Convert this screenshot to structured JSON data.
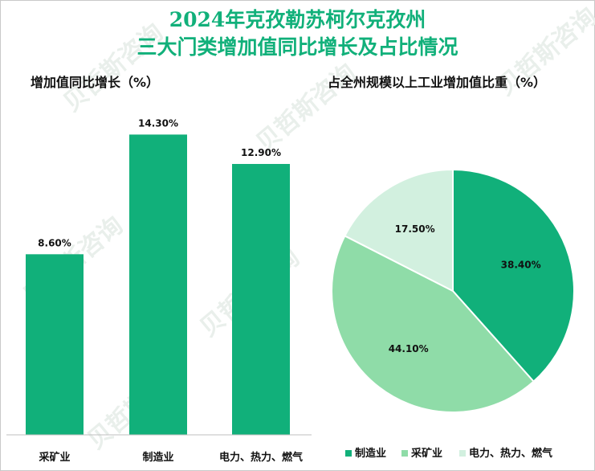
{
  "title_line1": "2024年克孜勒苏柯尔克孜州",
  "title_line2": "三大门类增加值同比增长及占比情况",
  "watermark": "贝哲斯咨询",
  "chart_data": [
    {
      "type": "bar",
      "title": "增加值同比增长（%）",
      "categories": [
        "采矿业",
        "制造业",
        "电力、热力、燃气"
      ],
      "values": [
        8.6,
        14.3,
        12.9
      ],
      "value_labels": [
        "8.60%",
        "14.30%",
        "12.90%"
      ],
      "ylim": [
        0,
        16
      ],
      "color": "#11b07a",
      "grid": false
    },
    {
      "type": "pie",
      "title": "占全州规模以上工业增加值比重（%）",
      "labels": [
        "制造业",
        "采矿业",
        "电力、热力、燃气"
      ],
      "values": [
        38.4,
        44.1,
        17.5
      ],
      "value_labels": [
        "38.40%",
        "44.10%",
        "17.50%"
      ],
      "colors": [
        "#11b07a",
        "#8fdca8",
        "#d2f0df"
      ],
      "legend": "bottom"
    }
  ]
}
